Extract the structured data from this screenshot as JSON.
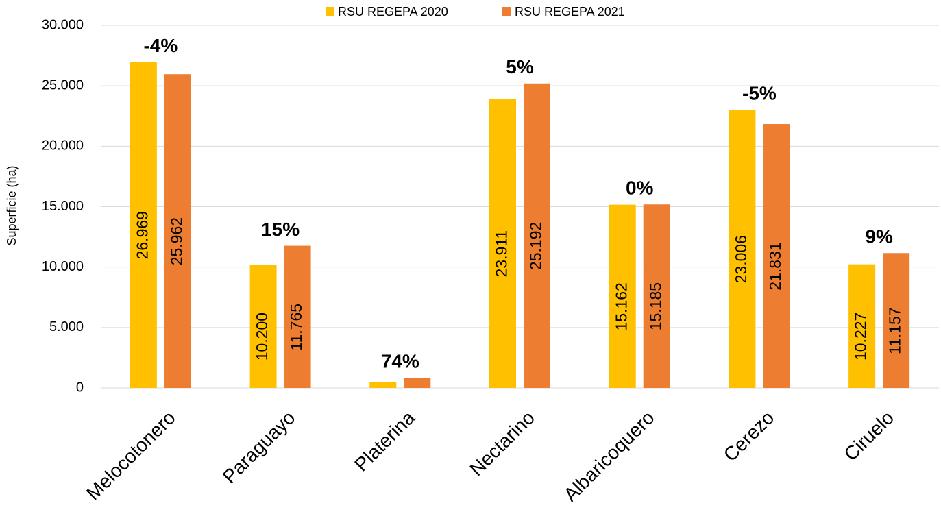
{
  "chart_data": {
    "type": "bar",
    "y_label": "Superficie (ha)",
    "categories": [
      "Melocotonero",
      "Paraguayo",
      "Platerina",
      "Nectarino",
      "Albaricoquero",
      "Cerezo",
      "Ciruelo"
    ],
    "series": [
      {
        "name": "RSU REGEPA 2020",
        "color": "#ffc000",
        "values": [
          26969,
          10200,
          480,
          23911,
          15162,
          23006,
          10227
        ],
        "value_labels": [
          "26.969",
          "10.200",
          null,
          "23.911",
          "15.162",
          "23.006",
          "10.227"
        ]
      },
      {
        "name": "RSU REGEPA 2021",
        "color": "#ed7d31",
        "values": [
          25962,
          11765,
          836,
          25192,
          15185,
          21831,
          11157
        ],
        "value_labels": [
          "25.962",
          "11.765",
          null,
          "25.192",
          "15.185",
          "21.831",
          "11.157"
        ]
      }
    ],
    "annotations": [
      "-4%",
      "15%",
      "74%",
      "5%",
      "0%",
      "-5%",
      "9%"
    ],
    "annotation_colors": [
      "#ff0000",
      "#000000",
      "#000000",
      "#000000",
      "#000000",
      "#ff0000",
      "#000000"
    ],
    "ylim": [
      0,
      30000
    ],
    "yticks": [
      0,
      {
        "value": 5000,
        "label": "5.000"
      },
      {
        "value": 10000,
        "label": "10.000"
      },
      {
        "value": 15000,
        "label": "15.000"
      },
      {
        "value": 20000,
        "label": "20.000"
      },
      {
        "value": 25000,
        "label": "25.000"
      },
      {
        "value": 30000,
        "label": "30.000"
      }
    ],
    "grid": true,
    "legend": "top"
  }
}
